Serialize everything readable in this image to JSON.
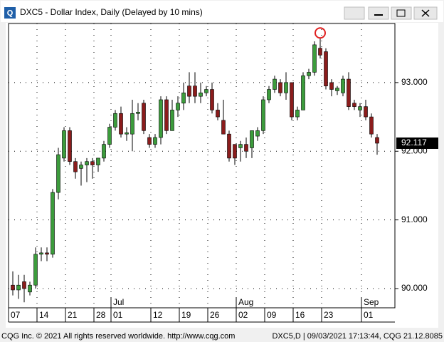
{
  "window_title": "DXC5 - Dollar Index, Daily (Delayed by 10 mins)",
  "footer_left": "CQG Inc. © 2021 All rights reserved worldwide. http://www.cqg.com",
  "footer_right": "DXC5,D | 09/03/2021 17:13:44, CQG 21.12.8085",
  "chart_data": {
    "type": "candlestick",
    "up_color": "#3c9c3c",
    "down_color": "#8b1c1c",
    "ylim": [
      89.72,
      93.86
    ],
    "yticks": [
      {
        "value": 90,
        "label": "90.000"
      },
      {
        "value": 91,
        "label": "91.000"
      },
      {
        "value": 92,
        "label": "92.000"
      },
      {
        "value": 93,
        "label": "93.000"
      }
    ],
    "xticks": [
      {
        "value": 0,
        "label": "07"
      },
      {
        "value": 5,
        "label": "14"
      },
      {
        "value": 10,
        "label": "21"
      },
      {
        "value": 15,
        "label": "28"
      },
      {
        "value": 18,
        "label": "01"
      },
      {
        "value": 25,
        "label": "12"
      },
      {
        "value": 30,
        "label": "19"
      },
      {
        "value": 35,
        "label": "26"
      },
      {
        "value": 40,
        "label": "02"
      },
      {
        "value": 45,
        "label": "09"
      },
      {
        "value": 50,
        "label": "16"
      },
      {
        "value": 55,
        "label": "23"
      },
      {
        "value": 62,
        "label": "01"
      }
    ],
    "months": [
      {
        "value": 18,
        "label": "Jul"
      },
      {
        "value": 40,
        "label": "Aug"
      },
      {
        "value": 62,
        "label": "Sep"
      }
    ],
    "grid": true,
    "last_price": 92.117,
    "open": [
      90.05,
      89.98,
      90.1,
      89.95,
      90.05,
      90.5,
      90.52,
      90.5,
      91.4,
      91.9,
      92.3,
      91.85,
      91.75,
      91.8,
      91.85,
      91.8,
      91.9,
      92.1,
      92.35,
      92.55,
      92.25,
      92.25,
      92.55,
      92.7,
      92.2,
      92.1,
      92.2,
      92.75,
      92.3,
      92.6,
      92.7,
      92.95,
      92.95,
      92.8,
      92.85,
      92.9,
      92.6,
      92.45,
      92.25,
      92.1,
      92.05,
      92.1,
      92.05,
      92.22,
      92.3,
      92.75,
      92.9,
      93.0,
      92.85,
      93.0,
      92.5,
      92.6,
      93.1,
      93.15,
      93.5,
      93.45,
      93.0,
      92.88,
      92.85,
      93.05,
      92.7,
      92.6,
      92.65,
      92.5,
      92.2
    ],
    "high": [
      90.25,
      90.2,
      90.2,
      90.1,
      90.6,
      90.6,
      90.6,
      91.45,
      92.05,
      92.35,
      92.35,
      91.9,
      91.85,
      91.9,
      91.9,
      91.9,
      92.15,
      92.4,
      92.6,
      92.65,
      92.35,
      92.75,
      92.7,
      92.75,
      92.25,
      92.25,
      92.8,
      92.8,
      92.75,
      92.8,
      93.0,
      93.15,
      93.15,
      93.0,
      92.95,
      93.0,
      92.7,
      92.75,
      92.3,
      92.1,
      92.15,
      92.2,
      92.3,
      92.35,
      92.8,
      92.95,
      93.1,
      93.05,
      93.15,
      93.0,
      92.65,
      93.15,
      93.2,
      93.6,
      93.65,
      93.5,
      93.05,
      92.95,
      93.1,
      93.15,
      92.75,
      92.7,
      92.75,
      92.55,
      92.25
    ],
    "low": [
      89.9,
      89.85,
      89.8,
      89.9,
      90.0,
      90.4,
      90.4,
      90.45,
      91.3,
      91.85,
      91.8,
      91.6,
      91.5,
      91.55,
      91.6,
      91.7,
      91.85,
      92.05,
      92.3,
      92.2,
      92.15,
      92.0,
      92.45,
      92.25,
      92.05,
      92.05,
      92.1,
      92.25,
      92.3,
      92.5,
      92.6,
      92.7,
      92.7,
      92.7,
      92.8,
      92.55,
      92.45,
      92.25,
      91.85,
      91.8,
      91.85,
      91.9,
      91.9,
      92.15,
      92.25,
      92.7,
      92.85,
      92.8,
      92.75,
      92.45,
      92.45,
      92.6,
      93.05,
      93.1,
      93.35,
      92.9,
      92.8,
      92.82,
      92.8,
      92.6,
      92.6,
      92.5,
      92.45,
      92.2,
      91.95
    ],
    "close": [
      89.98,
      90.05,
      90.0,
      90.05,
      90.5,
      90.52,
      90.5,
      91.4,
      91.95,
      92.3,
      91.85,
      91.7,
      91.8,
      91.85,
      91.8,
      91.9,
      92.1,
      92.35,
      92.55,
      92.25,
      92.27,
      92.55,
      92.57,
      92.3,
      92.1,
      92.2,
      92.75,
      92.3,
      92.6,
      92.7,
      92.85,
      92.8,
      92.8,
      92.85,
      92.9,
      92.6,
      92.5,
      92.25,
      91.9,
      91.9,
      92.1,
      92.0,
      92.3,
      92.3,
      92.75,
      92.9,
      93.05,
      92.85,
      93.0,
      92.5,
      92.6,
      93.1,
      93.15,
      93.55,
      93.4,
      92.95,
      92.9,
      92.92,
      93.05,
      92.65,
      92.65,
      92.65,
      92.5,
      92.25,
      92.117
    ]
  }
}
